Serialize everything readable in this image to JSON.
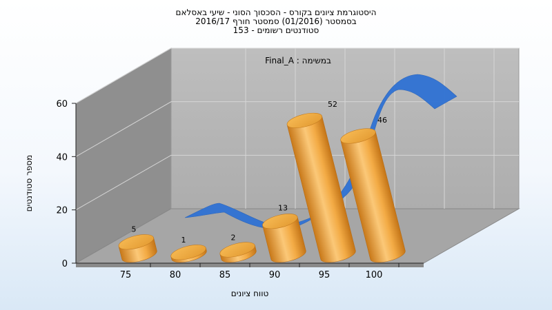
{
  "chart_data": {
    "type": "bar",
    "title_lines": [
      "היסטוגרמת ציונים בקורס - הסכסוך הסוני - שיעי באסלאם",
      "בסמסטר  (01/2016)  סמסטר חורף 2016/17",
      "153 - סטודנטים רשומים"
    ],
    "subtitle": "Final_A : במשימה",
    "xlabel": "טווח ציונים",
    "ylabel": "מספר סטודנטים",
    "categories": [
      "75",
      "80",
      "85",
      "90",
      "95",
      "100"
    ],
    "values": [
      5,
      1,
      2,
      13,
      52,
      46
    ],
    "yticks": [
      0,
      20,
      40,
      60
    ],
    "ylim": [
      0,
      60
    ],
    "overlay": "distribution-curve",
    "grid": true,
    "colors": {
      "bar": "#f0a63a",
      "bar_light": "#fcd48a",
      "bar_dark": "#d07f1c",
      "curve": "#2f6fd0",
      "back_wall": "#b4b4b4",
      "side_wall": "#8c8c8c",
      "floor": "#a4a4a4"
    }
  }
}
